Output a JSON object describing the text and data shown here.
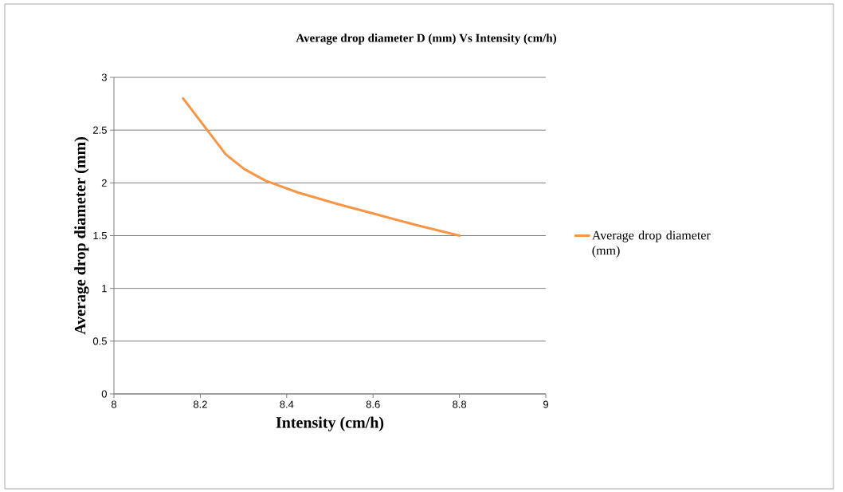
{
  "chart_data": {
    "type": "line",
    "title": "Average drop diameter D (mm) Vs Intensity (cm/h)",
    "xlabel": "Intensity (cm/h)",
    "ylabel": "Average drop diameter (mm)",
    "series": [
      {
        "name": "Average drop diameter (mm)",
        "color": "#f79646",
        "x": [
          8.16,
          8.216,
          8.259,
          8.302,
          8.351,
          8.425,
          8.517,
          8.609,
          8.7,
          8.8
        ],
        "values": [
          2.8,
          2.5,
          2.27,
          2.13,
          2.02,
          1.91,
          1.8,
          1.7,
          1.6,
          1.5
        ]
      }
    ],
    "xlim": [
      8,
      9
    ],
    "ylim": [
      0,
      3
    ],
    "xticks": [
      8,
      8.2,
      8.4,
      8.6,
      8.8,
      9
    ],
    "yticks": [
      0,
      0.5,
      1,
      1.5,
      2,
      2.5,
      3
    ],
    "grid": "y",
    "legend": "right",
    "marker": "none",
    "line_style": "solid"
  }
}
